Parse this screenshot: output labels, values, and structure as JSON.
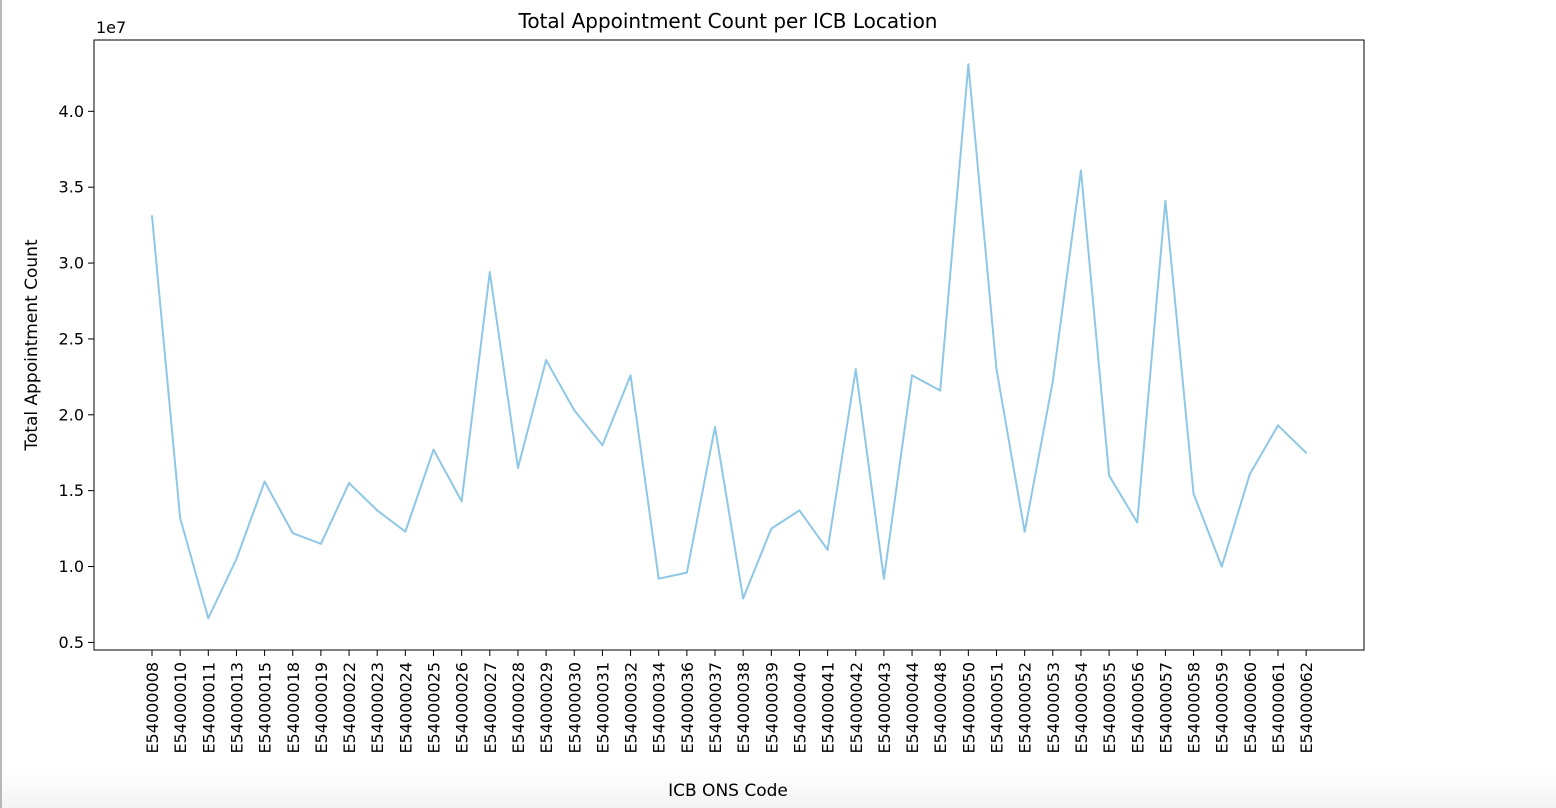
{
  "chart_data": {
    "type": "line",
    "title": "Total Appointment Count per ICB Location",
    "xlabel": "ICB ONS Code",
    "ylabel": "Total Appointment Count",
    "y_offset_label": "1e7",
    "line_color": "#8ec8e6",
    "grid": false,
    "ylim": [
      0.45,
      4.47
    ],
    "yticks": [
      "0.5",
      "1.0",
      "1.5",
      "2.0",
      "2.5",
      "3.0",
      "3.5",
      "4.0"
    ],
    "categories": [
      "E54000008",
      "E54000010",
      "E54000011",
      "E54000013",
      "E54000015",
      "E54000018",
      "E54000019",
      "E54000022",
      "E54000023",
      "E54000024",
      "E54000025",
      "E54000026",
      "E54000027",
      "E54000028",
      "E54000029",
      "E54000030",
      "E54000031",
      "E54000032",
      "E54000034",
      "E54000036",
      "E54000037",
      "E54000038",
      "E54000039",
      "E54000040",
      "E54000041",
      "E54000042",
      "E54000043",
      "E54000044",
      "E54000048",
      "E54000050",
      "E54000051",
      "E54000052",
      "E54000053",
      "E54000054",
      "E54000055",
      "E54000056",
      "E54000057",
      "E54000058",
      "E54000059",
      "E54000060",
      "E54000061",
      "E54000062"
    ],
    "series": [
      {
        "values": [
          3.31,
          1.32,
          0.66,
          1.05,
          1.56,
          1.22,
          1.15,
          1.55,
          1.37,
          1.23,
          1.77,
          1.43,
          2.94,
          1.65,
          2.36,
          2.03,
          1.8,
          2.26,
          0.92,
          0.96,
          1.92,
          0.79,
          1.25,
          1.37,
          1.11,
          2.3,
          0.92,
          2.26,
          2.16,
          4.31,
          2.3,
          1.23,
          2.22,
          3.61,
          1.6,
          1.29,
          3.41,
          1.48,
          1.0,
          1.61,
          1.93,
          1.75
        ]
      }
    ]
  }
}
